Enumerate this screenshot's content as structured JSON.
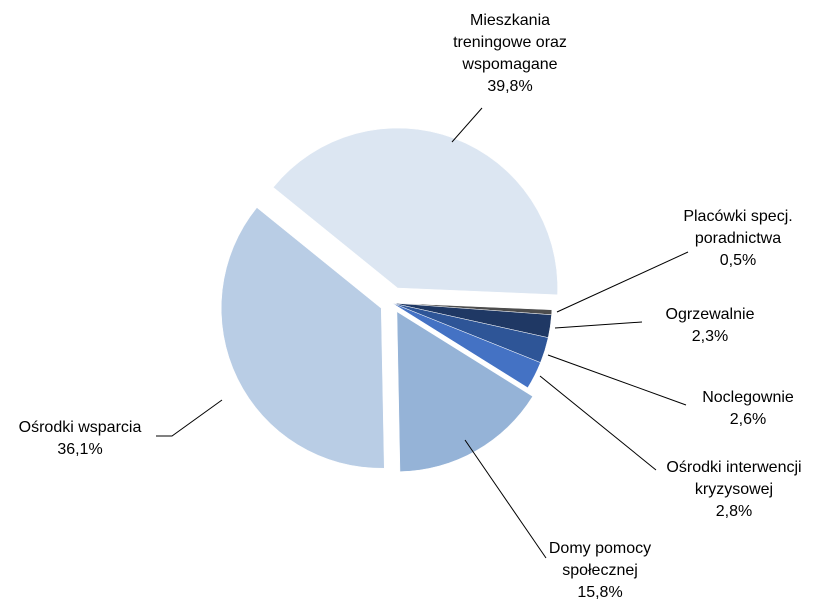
{
  "chart_data": {
    "type": "pie",
    "categories": [
      "Mieszkania treningowe oraz wspomagane",
      "Placówki specj. poradnictwa",
      "Ogrzewalnie",
      "Noclegownie",
      "Ośrodki interwencji kryzysowej",
      "Domy pomocy społecznej",
      "Ośrodki wsparcia"
    ],
    "values": [
      39.8,
      0.5,
      2.3,
      2.6,
      2.8,
      15.8,
      36.1
    ],
    "value_labels": [
      "39,8%",
      "0,5%",
      "2,3%",
      "2,6%",
      "2,8%",
      "15,8%",
      "36,1%"
    ],
    "colors": [
      "#dce6f2",
      "#4d4d4d",
      "#1f3864",
      "#2e5597",
      "#4472c4",
      "#95b3d7",
      "#b9cde5"
    ]
  }
}
